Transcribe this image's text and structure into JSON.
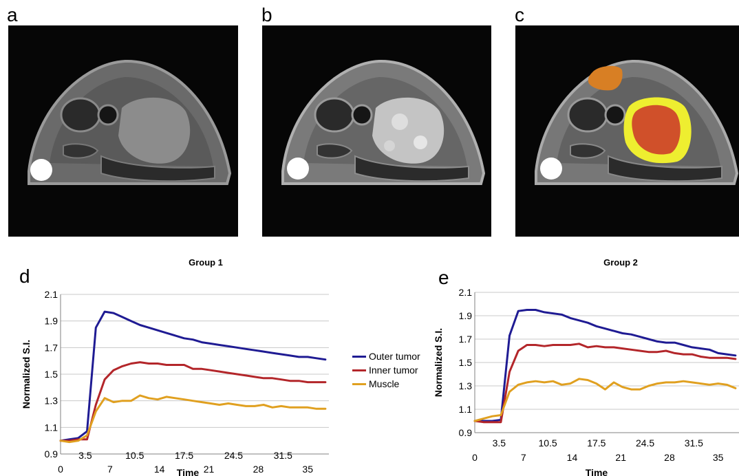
{
  "panels": {
    "a": {
      "letter": "a"
    },
    "b": {
      "letter": "b"
    },
    "c": {
      "letter": "c"
    },
    "d": {
      "letter": "d"
    },
    "e": {
      "letter": "e"
    }
  },
  "legend": [
    {
      "name": "Outer tumor",
      "color": "#1f1b93"
    },
    {
      "name": "Inner tumor",
      "color": "#b3262a"
    },
    {
      "name": "Muscle",
      "color": "#e0a020"
    }
  ],
  "colors": {
    "outer_region": "#eeee30",
    "inner_region": "#d0502a",
    "muscle_region": "#d87f24"
  },
  "chart_data": [
    {
      "type": "line",
      "title": "Group 1",
      "xlabel": "Time",
      "ylabel": "Normalized S.I.",
      "xlim": [
        0,
        38
      ],
      "ylim": [
        0.9,
        2.1
      ],
      "x_ticks_lower": [
        "0",
        "7",
        "14",
        "21",
        "28",
        "35"
      ],
      "x_ticks_upper": [
        "3.5",
        "10.5",
        "17.5",
        "24.5",
        "31.5"
      ],
      "y_ticks": [
        "0.9",
        "1.1",
        "1.3",
        "1.5",
        "1.7",
        "1.9",
        "2.1"
      ],
      "grid": true,
      "x": [
        0,
        1.25,
        2.5,
        3.75,
        5,
        6.25,
        7.5,
        8.75,
        10,
        11.25,
        12.5,
        13.75,
        15,
        16.25,
        17.5,
        18.75,
        20,
        21.25,
        22.5,
        23.75,
        25,
        26.25,
        27.5,
        28.75,
        30,
        31.25,
        32.5,
        33.75,
        35,
        36.25,
        37.5
      ],
      "series": [
        {
          "name": "Outer tumor",
          "values": [
            1.0,
            1.01,
            1.02,
            1.07,
            1.85,
            1.97,
            1.96,
            1.93,
            1.9,
            1.87,
            1.85,
            1.83,
            1.81,
            1.79,
            1.77,
            1.76,
            1.74,
            1.73,
            1.72,
            1.71,
            1.7,
            1.69,
            1.68,
            1.67,
            1.66,
            1.65,
            1.64,
            1.63,
            1.63,
            1.62,
            1.61
          ]
        },
        {
          "name": "Inner tumor",
          "values": [
            1.0,
            1.0,
            1.01,
            1.01,
            1.27,
            1.46,
            1.53,
            1.56,
            1.58,
            1.59,
            1.58,
            1.58,
            1.57,
            1.57,
            1.57,
            1.54,
            1.54,
            1.53,
            1.52,
            1.51,
            1.5,
            1.49,
            1.48,
            1.47,
            1.47,
            1.46,
            1.45,
            1.45,
            1.44,
            1.44,
            1.44
          ]
        },
        {
          "name": "Muscle",
          "values": [
            1.0,
            0.99,
            1.0,
            1.04,
            1.22,
            1.32,
            1.29,
            1.3,
            1.3,
            1.34,
            1.32,
            1.31,
            1.33,
            1.32,
            1.31,
            1.3,
            1.29,
            1.28,
            1.27,
            1.28,
            1.27,
            1.26,
            1.26,
            1.27,
            1.25,
            1.26,
            1.25,
            1.25,
            1.25,
            1.24,
            1.24
          ]
        }
      ]
    },
    {
      "type": "line",
      "title": "Group 2",
      "xlabel": "Time",
      "ylabel": "Normalized S.I.",
      "xlim": [
        0,
        38
      ],
      "ylim": [
        0.9,
        2.1
      ],
      "x_ticks_lower": [
        "0",
        "7",
        "14",
        "21",
        "28",
        "35"
      ],
      "x_ticks_upper": [
        "3.5",
        "10.5",
        "17.5",
        "24.5",
        "31.5"
      ],
      "y_ticks": [
        "0.9",
        "1.1",
        "1.3",
        "1.5",
        "1.7",
        "1.9",
        "2.1"
      ],
      "grid": true,
      "x": [
        0,
        1.25,
        2.5,
        3.75,
        5,
        6.25,
        7.5,
        8.75,
        10,
        11.25,
        12.5,
        13.75,
        15,
        16.25,
        17.5,
        18.75,
        20,
        21.25,
        22.5,
        23.75,
        25,
        26.25,
        27.5,
        28.75,
        30,
        31.25,
        32.5,
        33.75,
        35,
        36.25,
        37.5
      ],
      "series": [
        {
          "name": "Outer tumor",
          "values": [
            1.0,
            1.0,
            1.0,
            1.01,
            1.73,
            1.94,
            1.95,
            1.95,
            1.93,
            1.92,
            1.91,
            1.88,
            1.86,
            1.84,
            1.81,
            1.79,
            1.77,
            1.75,
            1.74,
            1.72,
            1.7,
            1.68,
            1.67,
            1.67,
            1.65,
            1.63,
            1.62,
            1.61,
            1.58,
            1.57,
            1.56
          ]
        },
        {
          "name": "Inner tumor",
          "values": [
            1.0,
            0.99,
            0.99,
            0.99,
            1.42,
            1.6,
            1.65,
            1.65,
            1.64,
            1.65,
            1.65,
            1.65,
            1.66,
            1.63,
            1.64,
            1.63,
            1.63,
            1.62,
            1.61,
            1.6,
            1.59,
            1.59,
            1.6,
            1.58,
            1.57,
            1.57,
            1.55,
            1.54,
            1.54,
            1.54,
            1.53
          ]
        },
        {
          "name": "Muscle",
          "values": [
            1.0,
            1.02,
            1.04,
            1.05,
            1.25,
            1.31,
            1.33,
            1.34,
            1.33,
            1.34,
            1.31,
            1.32,
            1.36,
            1.35,
            1.32,
            1.27,
            1.33,
            1.29,
            1.27,
            1.27,
            1.3,
            1.32,
            1.33,
            1.33,
            1.34,
            1.33,
            1.32,
            1.31,
            1.32,
            1.31,
            1.28
          ]
        }
      ]
    }
  ]
}
